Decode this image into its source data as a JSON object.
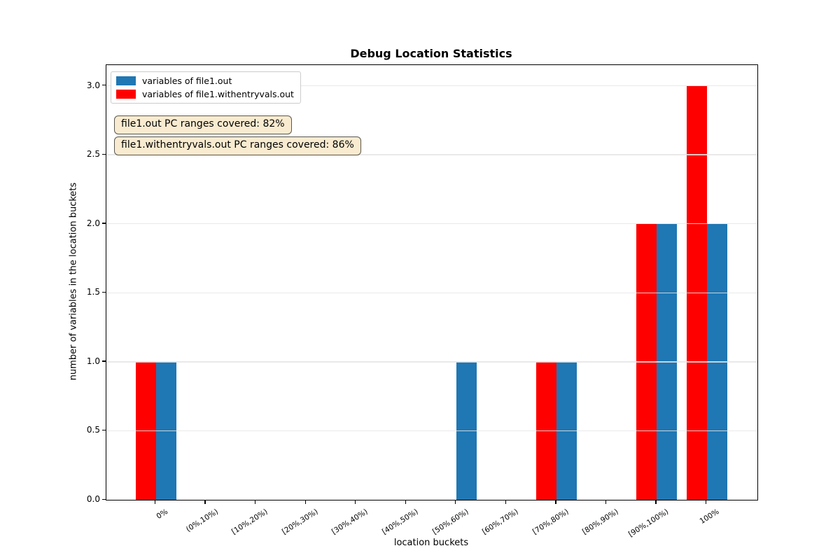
{
  "chart_data": {
    "type": "bar",
    "title": "Debug Location Statistics",
    "xlabel": "location buckets",
    "ylabel": "number of variables in the location buckets",
    "categories": [
      "0%",
      "(0%,10%)",
      "[10%,20%)",
      "[20%,30%)",
      "[30%,40%)",
      "[40%,50%)",
      "[50%,60%)",
      "[60%,70%)",
      "[70%,80%)",
      "[80%,90%)",
      "[90%,100%)",
      "100%"
    ],
    "series": [
      {
        "name": "variables of file1.withentryvals.out",
        "color": "#ff0000",
        "position": "left-of-tick",
        "values": [
          1,
          0,
          0,
          0,
          0,
          0,
          0,
          0,
          1,
          0,
          2,
          3
        ]
      },
      {
        "name": "variables of file1.out",
        "color": "#1f77b4",
        "position": "right-of-tick",
        "values": [
          1,
          0,
          0,
          0,
          0,
          0,
          1,
          0,
          1,
          0,
          2,
          2
        ]
      }
    ],
    "ylim": [
      0,
      3.15
    ],
    "yticks": [
      0,
      0.5,
      1,
      1.5,
      2,
      2.5,
      3
    ],
    "ytick_labels": [
      "0.0",
      "0.5",
      "1.0",
      "1.5",
      "2.0",
      "2.5",
      "3.0"
    ],
    "grid": "horizontal-only",
    "legend_position": "upper-left"
  },
  "legend": [
    {
      "label": "variables of file1.out",
      "color": "#1f77b4"
    },
    {
      "label": "variables of file1.withentryvals.out",
      "color": "#ff0000"
    }
  ],
  "annotations": [
    {
      "text": "file1.out PC ranges covered: 82%"
    },
    {
      "text": "file1.withentryvals.out PC ranges covered: 86%"
    }
  ],
  "colors": {
    "bar_blue": "#1f77b4",
    "bar_red": "#ff0000",
    "annotation_background": "#f8ebd0",
    "annotation_border": "#5a574e",
    "gridline": "#e5e5e5"
  }
}
